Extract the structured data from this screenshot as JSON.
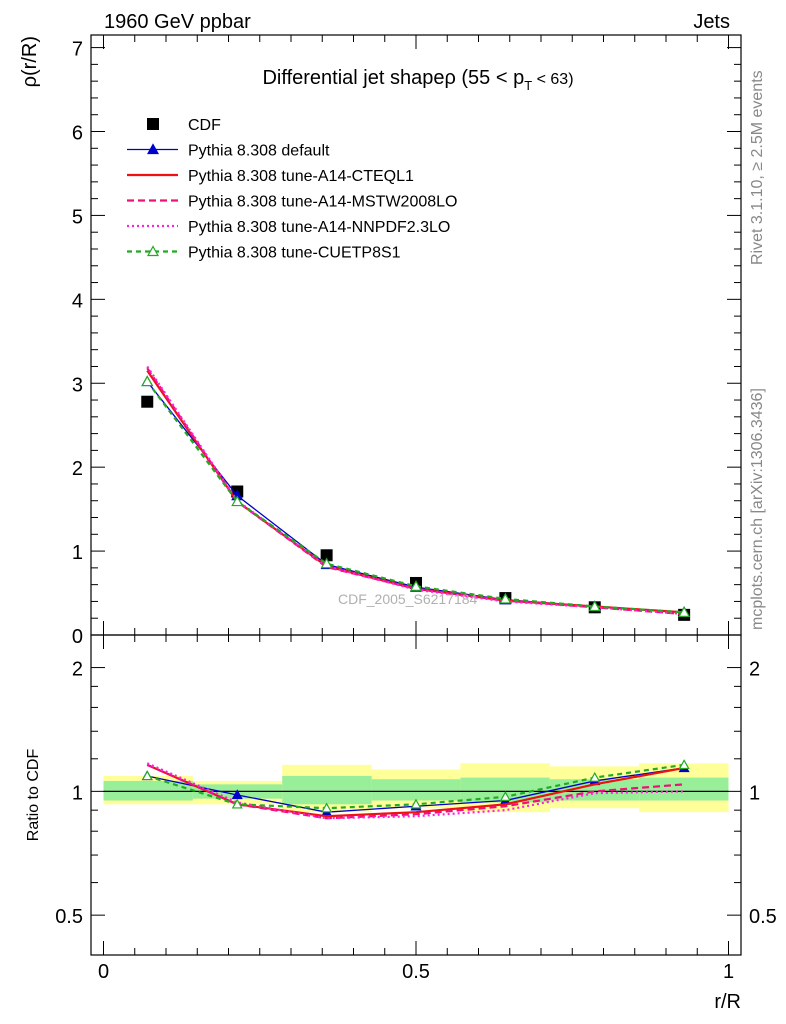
{
  "header": {
    "left": "1960 GeV ppbar",
    "right": "Jets"
  },
  "side_text": {
    "top": "Rivet 3.1.10, ≥ 2.5M events",
    "bottom": "mcplots.cern.ch [arXiv:1306.3436]"
  },
  "watermark": "CDF_2005_S6217184",
  "chart_data": [
    {
      "type": "line",
      "title": "Differential jet shapeρ (55 < p",
      "title_sub": "T",
      "title_end": " < 63)",
      "xlabel": "r/R",
      "ylabel": "ρ(r/R)",
      "xlim": [
        -0.02,
        1.02
      ],
      "ylim": [
        0,
        7.15
      ],
      "yticks": [
        "0",
        "1",
        "2",
        "3",
        "4",
        "5",
        "6",
        "7"
      ],
      "x": [
        0.07,
        0.214,
        0.357,
        0.5,
        0.643,
        0.786,
        0.929
      ],
      "series": [
        {
          "name": "CDF",
          "marker": "square",
          "color": "#000000",
          "values": [
            2.78,
            1.71,
            0.95,
            0.62,
            0.44,
            0.33,
            0.24
          ]
        },
        {
          "name": "Pythia 8.308 default",
          "marker": "triangle",
          "color": "#0000cc",
          "dash": "",
          "values": [
            3.02,
            1.66,
            0.84,
            0.57,
            0.42,
            0.34,
            0.27
          ]
        },
        {
          "name": "Pythia 8.308 tune-A14-CTEQL1",
          "marker": "none",
          "color": "#ee1111",
          "dash": "",
          "values": [
            3.15,
            1.59,
            0.82,
            0.55,
            0.41,
            0.34,
            0.27
          ]
        },
        {
          "name": "Pythia 8.308 tune-A14-MSTW2008LO",
          "marker": "none",
          "color": "#ee1177",
          "dash": "7,4",
          "values": [
            3.18,
            1.59,
            0.81,
            0.55,
            0.41,
            0.33,
            0.25
          ]
        },
        {
          "name": "Pythia 8.308 tune-A14-NNPDF2.3LO",
          "marker": "none",
          "color": "#ff22dd",
          "dash": "2,3",
          "values": [
            3.2,
            1.6,
            0.82,
            0.54,
            0.4,
            0.33,
            0.25
          ]
        },
        {
          "name": "Pythia 8.308 tune-CUETP8S1",
          "marker": "open-triangle",
          "color": "#22aa22",
          "dash": "5,4",
          "values": [
            3.02,
            1.59,
            0.85,
            0.58,
            0.43,
            0.34,
            0.27
          ]
        }
      ],
      "legend_position": "top-left"
    },
    {
      "type": "line",
      "title": "",
      "xlabel": "r/R",
      "ylabel": "Ratio to CDF",
      "xlim": [
        -0.02,
        1.02
      ],
      "ylim": [
        0.4,
        2.4
      ],
      "yscale": "log",
      "yticks": [
        "0.5",
        "1",
        "2"
      ],
      "xticks": [
        "0",
        "0.5",
        "1"
      ],
      "reference_line": 1,
      "uncertainty_bands": {
        "edges": [
          0.0,
          0.143,
          0.286,
          0.429,
          0.571,
          0.714,
          0.857,
          1.0
        ],
        "inner": [
          [
            0.95,
            1.06
          ],
          [
            0.96,
            1.04
          ],
          [
            0.93,
            1.09
          ],
          [
            0.95,
            1.07
          ],
          [
            0.94,
            1.08
          ],
          [
            0.95,
            1.07
          ],
          [
            0.95,
            1.08
          ]
        ],
        "outer": [
          [
            0.93,
            1.09
          ],
          [
            0.93,
            1.06
          ],
          [
            0.89,
            1.16
          ],
          [
            0.91,
            1.13
          ],
          [
            0.89,
            1.17
          ],
          [
            0.91,
            1.15
          ],
          [
            0.89,
            1.17
          ]
        ],
        "inner_color": "#99ee99",
        "outer_color": "#ffff99"
      },
      "x": [
        0.07,
        0.214,
        0.357,
        0.5,
        0.643,
        0.786,
        0.929
      ],
      "series": [
        {
          "name": "Pythia 8.308 default",
          "marker": "triangle",
          "color": "#0000cc",
          "dash": "",
          "values": [
            1.09,
            0.98,
            0.89,
            0.92,
            0.95,
            1.06,
            1.14
          ]
        },
        {
          "name": "Pythia 8.308 tune-A14-CTEQL1",
          "marker": "none",
          "color": "#ee1111",
          "dash": "",
          "values": [
            1.16,
            0.93,
            0.87,
            0.89,
            0.93,
            1.04,
            1.14
          ]
        },
        {
          "name": "Pythia 8.308 tune-A14-MSTW2008LO",
          "marker": "none",
          "color": "#ee1177",
          "dash": "7,4",
          "values": [
            1.16,
            0.93,
            0.86,
            0.88,
            0.92,
            1.0,
            1.04
          ]
        },
        {
          "name": "Pythia 8.308 tune-A14-NNPDF2.3LO",
          "marker": "none",
          "color": "#ff22dd",
          "dash": "2,3",
          "values": [
            1.17,
            0.94,
            0.86,
            0.87,
            0.9,
            0.99,
            1.0
          ]
        },
        {
          "name": "Pythia 8.308 tune-CUETP8S1",
          "marker": "open-triangle",
          "color": "#22aa22",
          "dash": "5,4",
          "values": [
            1.09,
            0.93,
            0.91,
            0.93,
            0.97,
            1.08,
            1.16
          ]
        }
      ]
    }
  ]
}
